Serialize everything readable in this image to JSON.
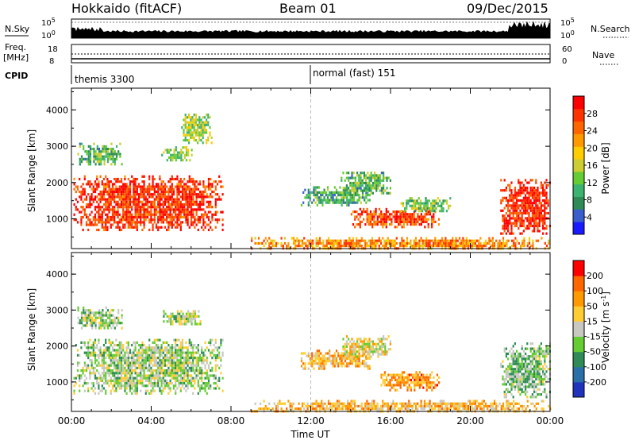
{
  "header": {
    "title": "Hokkaido (fitACF)",
    "beam": "Beam 01",
    "date": "09/Dec/2015"
  },
  "summary": {
    "nsky_label": "N.Sky",
    "nsky_ticks": [
      "10^5",
      "10^0"
    ],
    "nsearch_label": "N.Search",
    "freq_label_1": "Freq.",
    "freq_label_2": "[MHz]",
    "freq_ticks": [
      "18",
      "8"
    ],
    "nave_label": "Nave",
    "nave_ticks": [
      "60",
      "0"
    ],
    "cpid_label": "CPID",
    "cpid_segments": [
      {
        "label": "themis 3300",
        "start_hour": 0
      },
      {
        "label": "normal (fast) 151",
        "start_hour": 12
      }
    ]
  },
  "chart_data": [
    {
      "type": "heatmap",
      "name": "power",
      "ylabel": "Slant Range [km]",
      "yticks": [
        1000,
        2000,
        3000,
        4000
      ],
      "ylim": [
        180,
        4600
      ],
      "xlim": [
        0,
        24
      ],
      "colorbar": {
        "label": "Power [dB]",
        "ticks": [
          "28",
          "24",
          "20",
          "16",
          "12",
          "8",
          "4"
        ],
        "colors": [
          "#1a1aff",
          "#3a5fcd",
          "#2e8b57",
          "#3cb371",
          "#66cc33",
          "#cccc33",
          "#ffcc00",
          "#ff9900",
          "#ff6600",
          "#ff3300",
          "#ff0000"
        ]
      },
      "regions": [
        {
          "t0": 0.1,
          "t1": 7.6,
          "r0": 700,
          "r1": 2200,
          "level": 0.88
        },
        {
          "t0": 0.3,
          "t1": 2.5,
          "r0": 2500,
          "r1": 3100,
          "level": 0.35
        },
        {
          "t0": 4.5,
          "t1": 6.0,
          "r0": 2600,
          "r1": 3000,
          "level": 0.45
        },
        {
          "t0": 5.5,
          "t1": 7.0,
          "r0": 3100,
          "r1": 3900,
          "level": 0.45
        },
        {
          "t0": 11.5,
          "t1": 15.0,
          "r0": 1400,
          "r1": 1900,
          "level": 0.3
        },
        {
          "t0": 13.5,
          "t1": 16.0,
          "r0": 1700,
          "r1": 2300,
          "level": 0.35
        },
        {
          "t0": 14.0,
          "t1": 18.5,
          "r0": 800,
          "r1": 1300,
          "level": 0.82
        },
        {
          "t0": 16.5,
          "t1": 19.0,
          "r0": 1200,
          "r1": 1600,
          "level": 0.4
        },
        {
          "t0": 21.5,
          "t1": 24.0,
          "r0": 600,
          "r1": 2100,
          "level": 0.9
        },
        {
          "t0": 9.0,
          "t1": 24.0,
          "r0": 180,
          "r1": 500,
          "level": 0.7
        }
      ]
    },
    {
      "type": "heatmap",
      "name": "velocity",
      "xlabel": "Time UT",
      "ylabel": "Slant Range [km]",
      "yticks": [
        1000,
        2000,
        3000,
        4000
      ],
      "ylim": [
        180,
        4600
      ],
      "xlim": [
        0,
        24
      ],
      "xticks": [
        "00:00",
        "04:00",
        "08:00",
        "12:00",
        "16:00",
        "20:00",
        "00:00"
      ],
      "colorbar": {
        "label": "Velocity [m s^-1]",
        "ticks": [
          "200",
          "100",
          "50",
          "15",
          "-15",
          "-50",
          "-100",
          "-200"
        ],
        "colors": [
          "#2233bb",
          "#2a6fa8",
          "#2e8b57",
          "#66cc33",
          "#c8c8c0",
          "#ffcc33",
          "#ff9900",
          "#ff6600",
          "#ff0000"
        ]
      },
      "regions": [
        {
          "t0": 0.1,
          "t1": 7.6,
          "r0": 700,
          "r1": 2200,
          "level": 0.45
        },
        {
          "t0": 0.3,
          "t1": 2.5,
          "r0": 2500,
          "r1": 3100,
          "level": 0.45
        },
        {
          "t0": 4.5,
          "t1": 6.5,
          "r0": 2600,
          "r1": 3000,
          "level": 0.45
        },
        {
          "t0": 11.5,
          "t1": 15.0,
          "r0": 1400,
          "r1": 1900,
          "level": 0.65
        },
        {
          "t0": 13.5,
          "t1": 16.0,
          "r0": 1700,
          "r1": 2300,
          "level": 0.55
        },
        {
          "t0": 15.5,
          "t1": 18.5,
          "r0": 800,
          "r1": 1300,
          "level": 0.75
        },
        {
          "t0": 21.5,
          "t1": 24.0,
          "r0": 600,
          "r1": 2100,
          "level": 0.4
        },
        {
          "t0": 9.0,
          "t1": 24.0,
          "r0": 180,
          "r1": 500,
          "level": 0.65
        }
      ]
    }
  ]
}
